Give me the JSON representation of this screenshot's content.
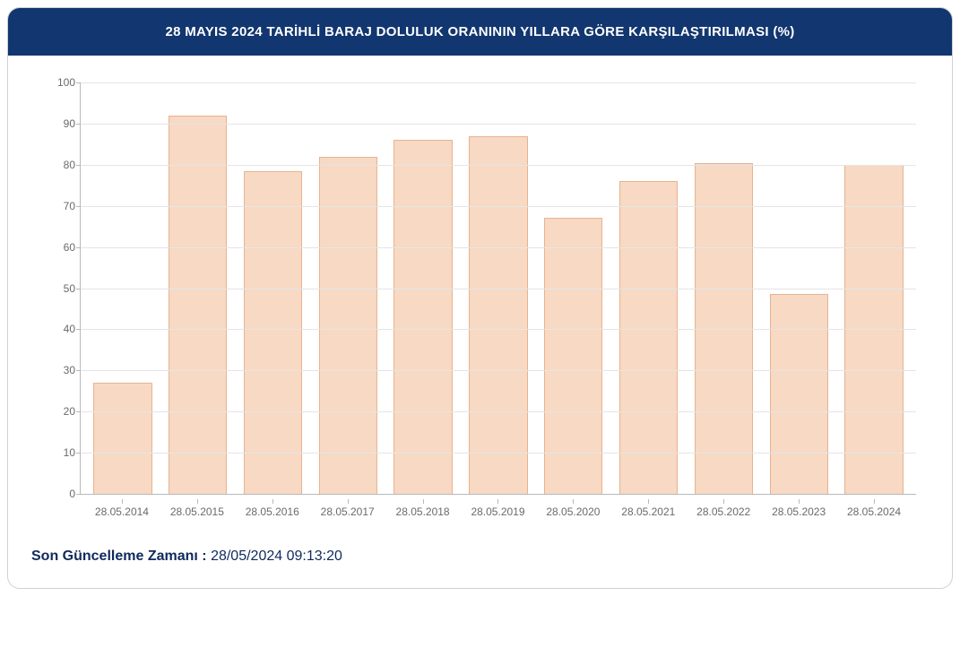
{
  "title": "28 MAYIS 2024 TARİHLİ BARAJ DOLULUK ORANININ YILLARA GÖRE KARŞILAŞTIRILMASI (%)",
  "footer": {
    "label": "Son Güncelleme Zamanı :",
    "value": "28/05/2024 09:13:20"
  },
  "chart": {
    "type": "bar",
    "categories": [
      "28.05.2014",
      "28.05.2015",
      "28.05.2016",
      "28.05.2017",
      "28.05.2018",
      "28.05.2019",
      "28.05.2020",
      "28.05.2021",
      "28.05.2022",
      "28.05.2023",
      "28.05.2024"
    ],
    "values": [
      27,
      92,
      78.5,
      82,
      86,
      87,
      67,
      76,
      80.5,
      48.5,
      80
    ],
    "ylim": [
      0,
      100
    ],
    "ytick_step": 10,
    "bar_fill": "#f7d9c4",
    "bar_border": "#e8b38f",
    "grid_color": "#e5e5e5",
    "axis_color": "#b8b8b8",
    "tick_label_color": "#6a6a6a",
    "tick_fontsize": 12,
    "background_color": "#ffffff",
    "bar_width_ratio": 0.78
  },
  "colors": {
    "title_bg": "#12366f",
    "title_fg": "#ffffff",
    "footer_fg": "#0f2a5c",
    "card_border": "#d0d0d0"
  }
}
